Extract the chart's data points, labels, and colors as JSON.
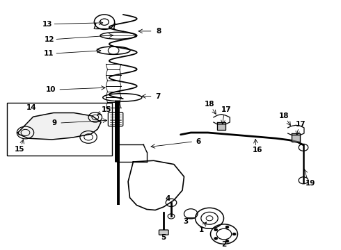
{
  "title": "",
  "bg_color": "#ffffff",
  "line_color": "#000000",
  "label_color": "#000000",
  "fig_width": 4.9,
  "fig_height": 3.6,
  "dpi": 100
}
